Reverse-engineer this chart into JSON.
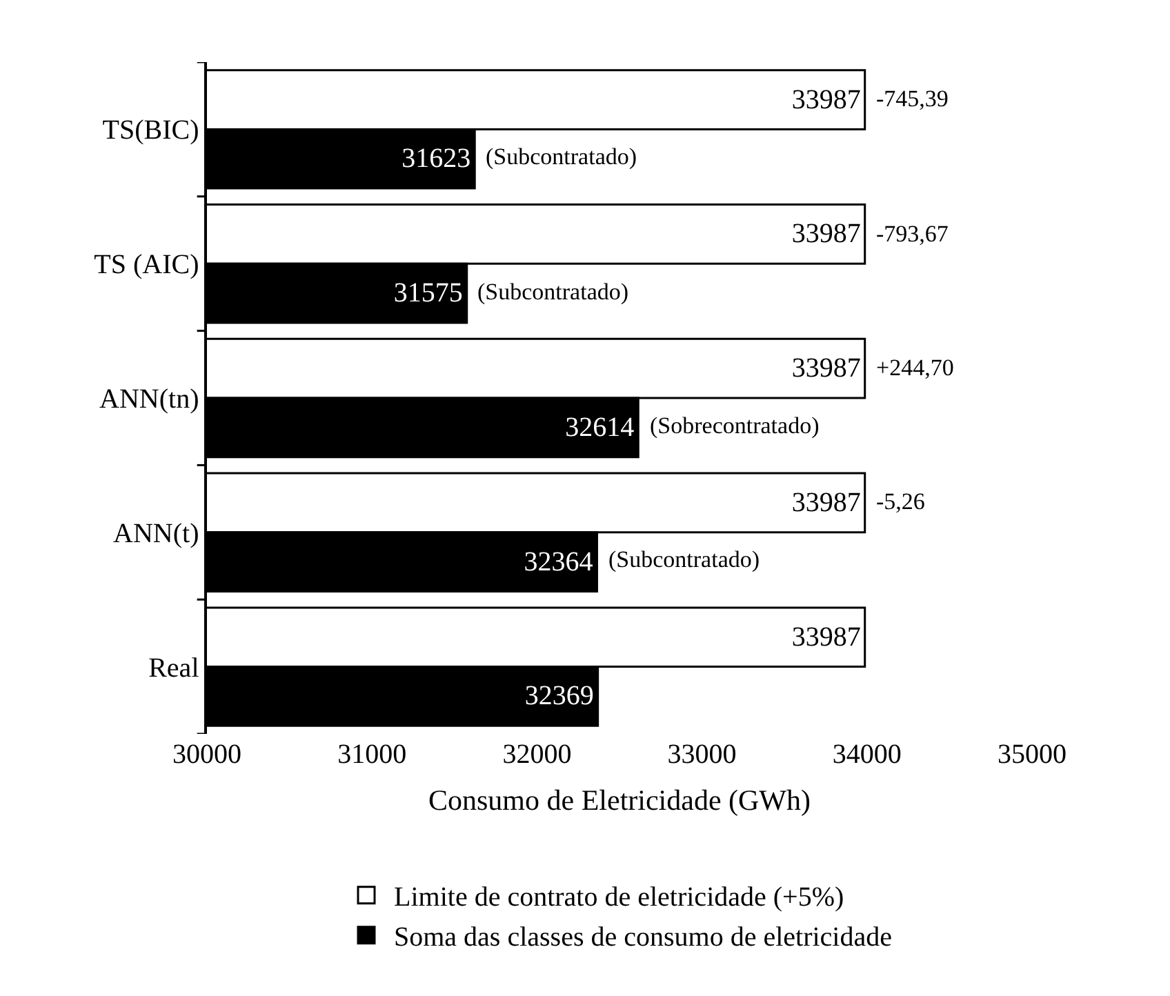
{
  "chart_data": {
    "type": "bar",
    "orientation": "horizontal",
    "xlabel": "Consumo de Eletricidade (GWh)",
    "categories": [
      "TS(BIC)",
      "TS (AIC)",
      "ANN(tn)",
      "ANN(t)",
      "Real"
    ],
    "series": [
      {
        "name": "Limite de contrato de eletricidade (+5%)",
        "color": "#ffffff",
        "values": [
          33987,
          33987,
          33987,
          33987,
          33987
        ]
      },
      {
        "name": "Soma das classes de consumo de eletricidade",
        "color": "#000000",
        "values": [
          31623,
          31575,
          32614,
          32364,
          32369
        ]
      }
    ],
    "xlim": [
      30000,
      35000
    ],
    "xticks": [
      30000,
      31000,
      32000,
      33000,
      34000,
      35000
    ],
    "data_labels": true,
    "legend": "bottom",
    "annotations": [
      {
        "text": "-745,39",
        "x": 33987,
        "y": "TS(BIC)"
      },
      {
        "text": "-793,67",
        "x": 33987,
        "y": "TS (AIC)"
      },
      {
        "text": "+244,70",
        "x": 33987,
        "y": "ANN(tn)"
      },
      {
        "text": "-5,26",
        "x": 33987,
        "y": "ANN(t)"
      },
      {
        "text": "(Subcontratado)",
        "x": 31623,
        "y": "TS(BIC)"
      },
      {
        "text": "(Subcontratado)",
        "x": 31575,
        "y": "TS (AIC)"
      },
      {
        "text": "(Sobrecontratado)",
        "x": 32614,
        "y": "ANN(tn)"
      },
      {
        "text": "(Subcontratado)",
        "x": 32364,
        "y": "ANN(t)"
      }
    ]
  }
}
